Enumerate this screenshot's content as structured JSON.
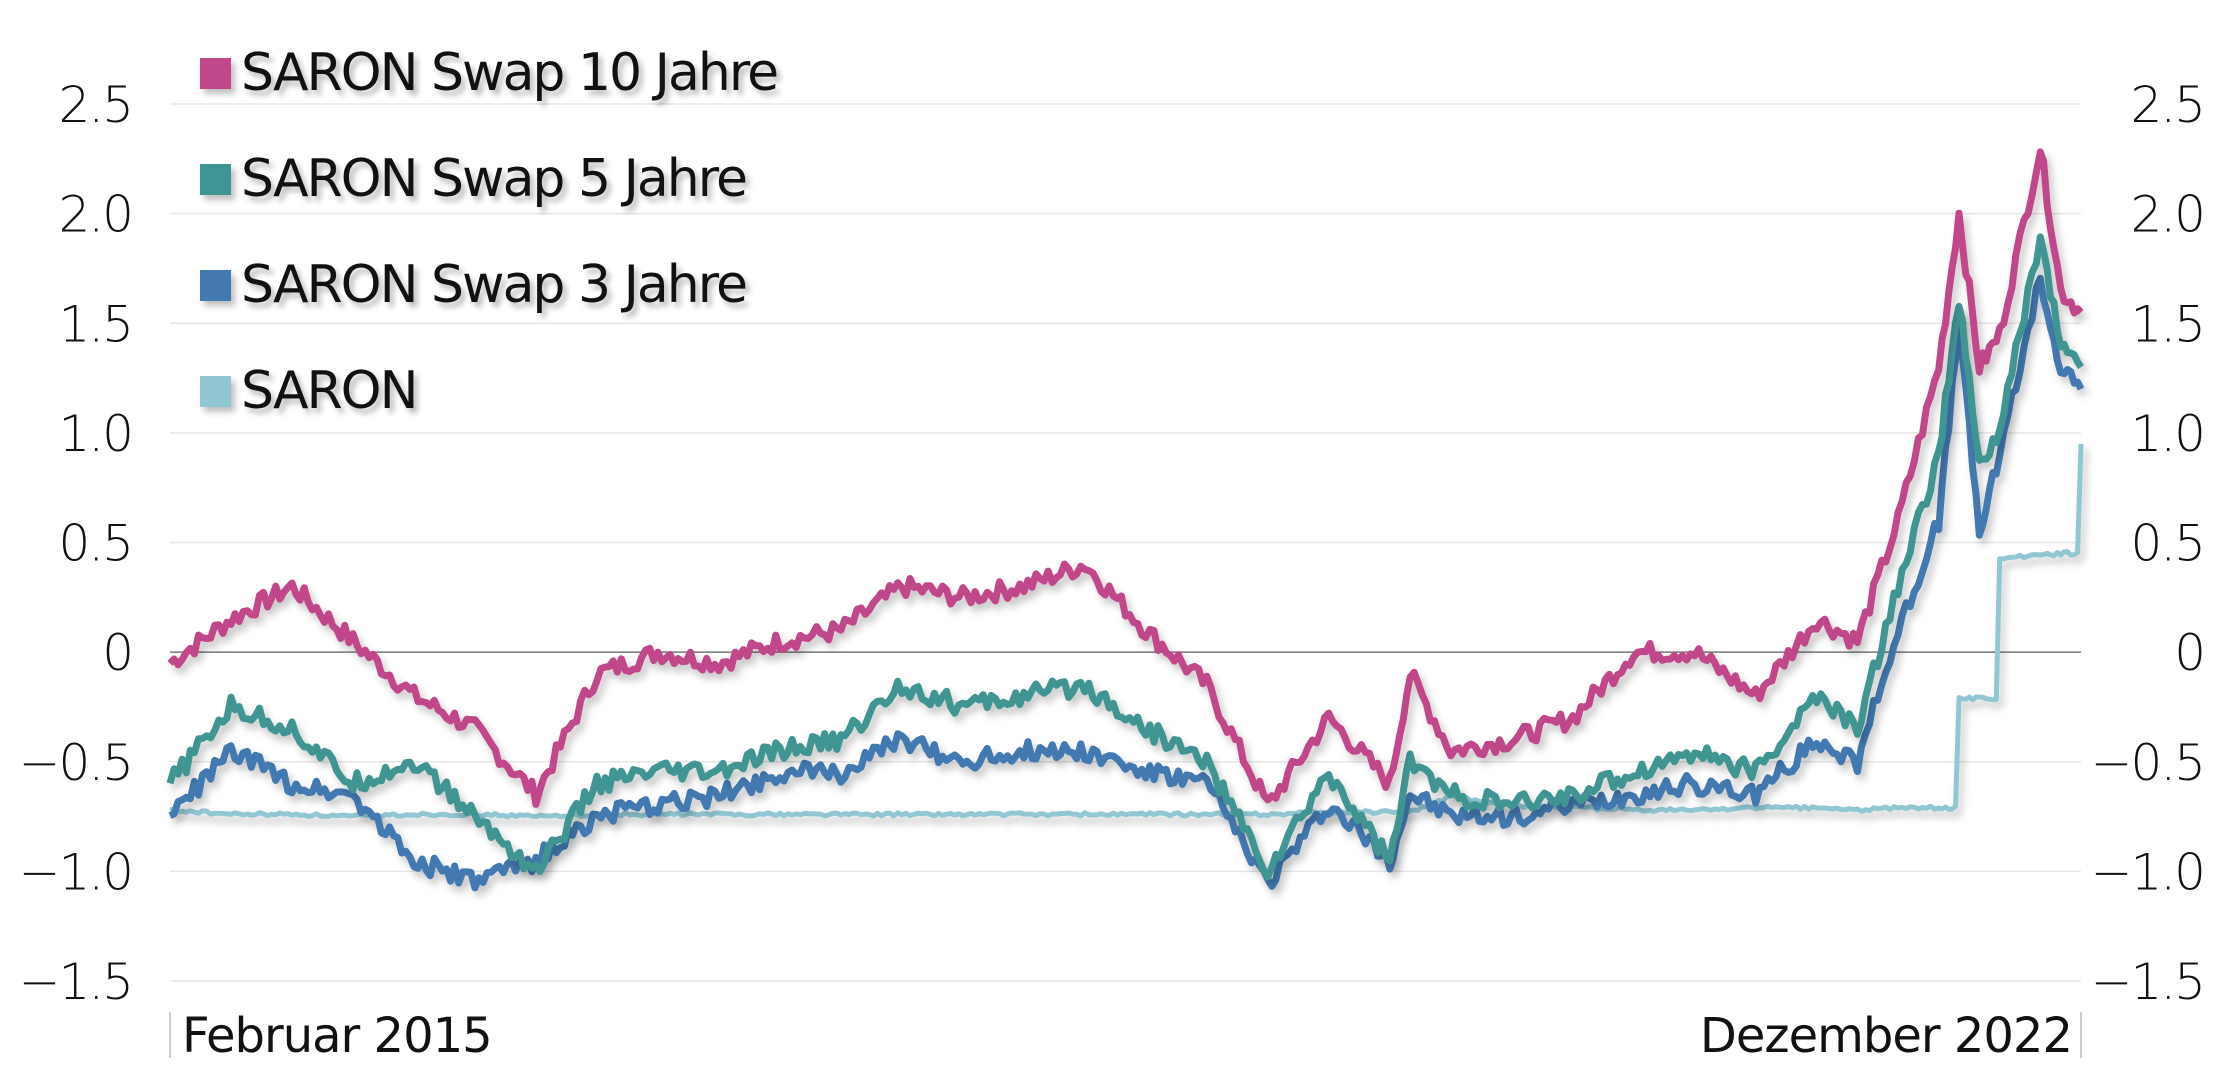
{
  "chart_data": {
    "type": "line",
    "title": "",
    "xlabel": "",
    "ylabel": "",
    "ylim": [
      -1.5,
      2.5
    ],
    "yticks": [
      2.5,
      2.0,
      1.5,
      1.0,
      0.5,
      0,
      -0.5,
      -1.0,
      -1.5
    ],
    "ytick_labels": [
      "2.5",
      "2.0",
      "1.5",
      "1.0",
      "0.5",
      "0",
      "−0.5",
      "−1.0",
      "−1.5"
    ],
    "x_start_label": "Februar 2015",
    "x_end_label": "Dezember 2022",
    "grid": true,
    "legend_position": "top-left",
    "x": [
      "2015-02",
      "2015-05",
      "2015-08",
      "2015-11",
      "2016-02",
      "2016-05",
      "2016-08",
      "2016-11",
      "2017-02",
      "2017-05",
      "2017-08",
      "2017-11",
      "2018-02",
      "2018-05",
      "2018-08",
      "2018-11",
      "2019-02",
      "2019-05",
      "2019-08",
      "2019-11",
      "2020-02",
      "2020-03",
      "2020-05",
      "2020-08",
      "2020-11",
      "2021-02",
      "2021-05",
      "2021-08",
      "2021-11",
      "2022-01",
      "2022-03",
      "2022-05",
      "2022-06",
      "2022-07",
      "2022-08",
      "2022-10",
      "2022-11",
      "2022-12"
    ],
    "series": [
      {
        "name": "SARON Swap 10 Jahre",
        "color": "#c0478a",
        "values": [
          -0.05,
          0.15,
          0.3,
          0.05,
          -0.2,
          -0.35,
          -0.65,
          -0.1,
          0.0,
          -0.05,
          0.05,
          0.1,
          0.3,
          0.25,
          0.3,
          0.4,
          0.1,
          -0.15,
          -0.7,
          -0.3,
          -0.6,
          -0.1,
          -0.45,
          -0.4,
          -0.3,
          0.0,
          0.0,
          -0.2,
          0.15,
          0.05,
          0.6,
          1.3,
          2.0,
          1.3,
          1.45,
          2.3,
          1.65,
          1.55
        ]
      },
      {
        "name": "SARON Swap 5 Jahre",
        "color": "#3f9593",
        "values": [
          -0.6,
          -0.25,
          -0.35,
          -0.6,
          -0.5,
          -0.75,
          -1.0,
          -0.6,
          -0.55,
          -0.55,
          -0.45,
          -0.4,
          -0.15,
          -0.25,
          -0.2,
          -0.15,
          -0.35,
          -0.5,
          -1.0,
          -0.55,
          -0.95,
          -0.5,
          -0.65,
          -0.7,
          -0.65,
          -0.55,
          -0.45,
          -0.55,
          -0.2,
          -0.35,
          0.3,
          0.9,
          1.6,
          0.85,
          1.0,
          1.9,
          1.4,
          1.3
        ]
      },
      {
        "name": "SARON Swap 3 Jahre",
        "color": "#4279b0",
        "values": [
          -0.75,
          -0.45,
          -0.6,
          -0.65,
          -0.95,
          -1.05,
          -0.95,
          -0.75,
          -0.7,
          -0.65,
          -0.55,
          -0.55,
          -0.4,
          -0.5,
          -0.45,
          -0.45,
          -0.55,
          -0.6,
          -1.05,
          -0.7,
          -0.95,
          -0.65,
          -0.75,
          -0.75,
          -0.7,
          -0.65,
          -0.6,
          -0.65,
          -0.4,
          -0.5,
          0.1,
          0.6,
          1.5,
          0.55,
          0.9,
          1.7,
          1.3,
          1.2
        ]
      },
      {
        "name": "SARON",
        "color": "#90c7d3",
        "values": [
          -0.72,
          -0.74,
          -0.74,
          -0.75,
          -0.74,
          -0.74,
          -0.75,
          -0.74,
          -0.74,
          -0.74,
          -0.74,
          -0.74,
          -0.74,
          -0.74,
          -0.74,
          -0.74,
          -0.74,
          -0.74,
          -0.74,
          -0.73,
          -0.73,
          -0.73,
          -0.66,
          -0.7,
          -0.71,
          -0.72,
          -0.72,
          -0.71,
          -0.71,
          -0.72,
          -0.71,
          -0.71,
          -0.21,
          -0.21,
          0.43,
          0.44,
          0.45,
          0.95
        ]
      }
    ]
  },
  "legend": {
    "items": [
      {
        "label": "SARON Swap 10 Jahre",
        "color": "#c0478a"
      },
      {
        "label": "SARON Swap 5 Jahre",
        "color": "#3f9593"
      },
      {
        "label": "SARON Swap 3 Jahre",
        "color": "#4279b0"
      },
      {
        "label": "SARON",
        "color": "#90c7d3"
      }
    ]
  },
  "axis": {
    "x_start_label": "Februar 2015",
    "x_end_label": "Dezember 2022"
  }
}
